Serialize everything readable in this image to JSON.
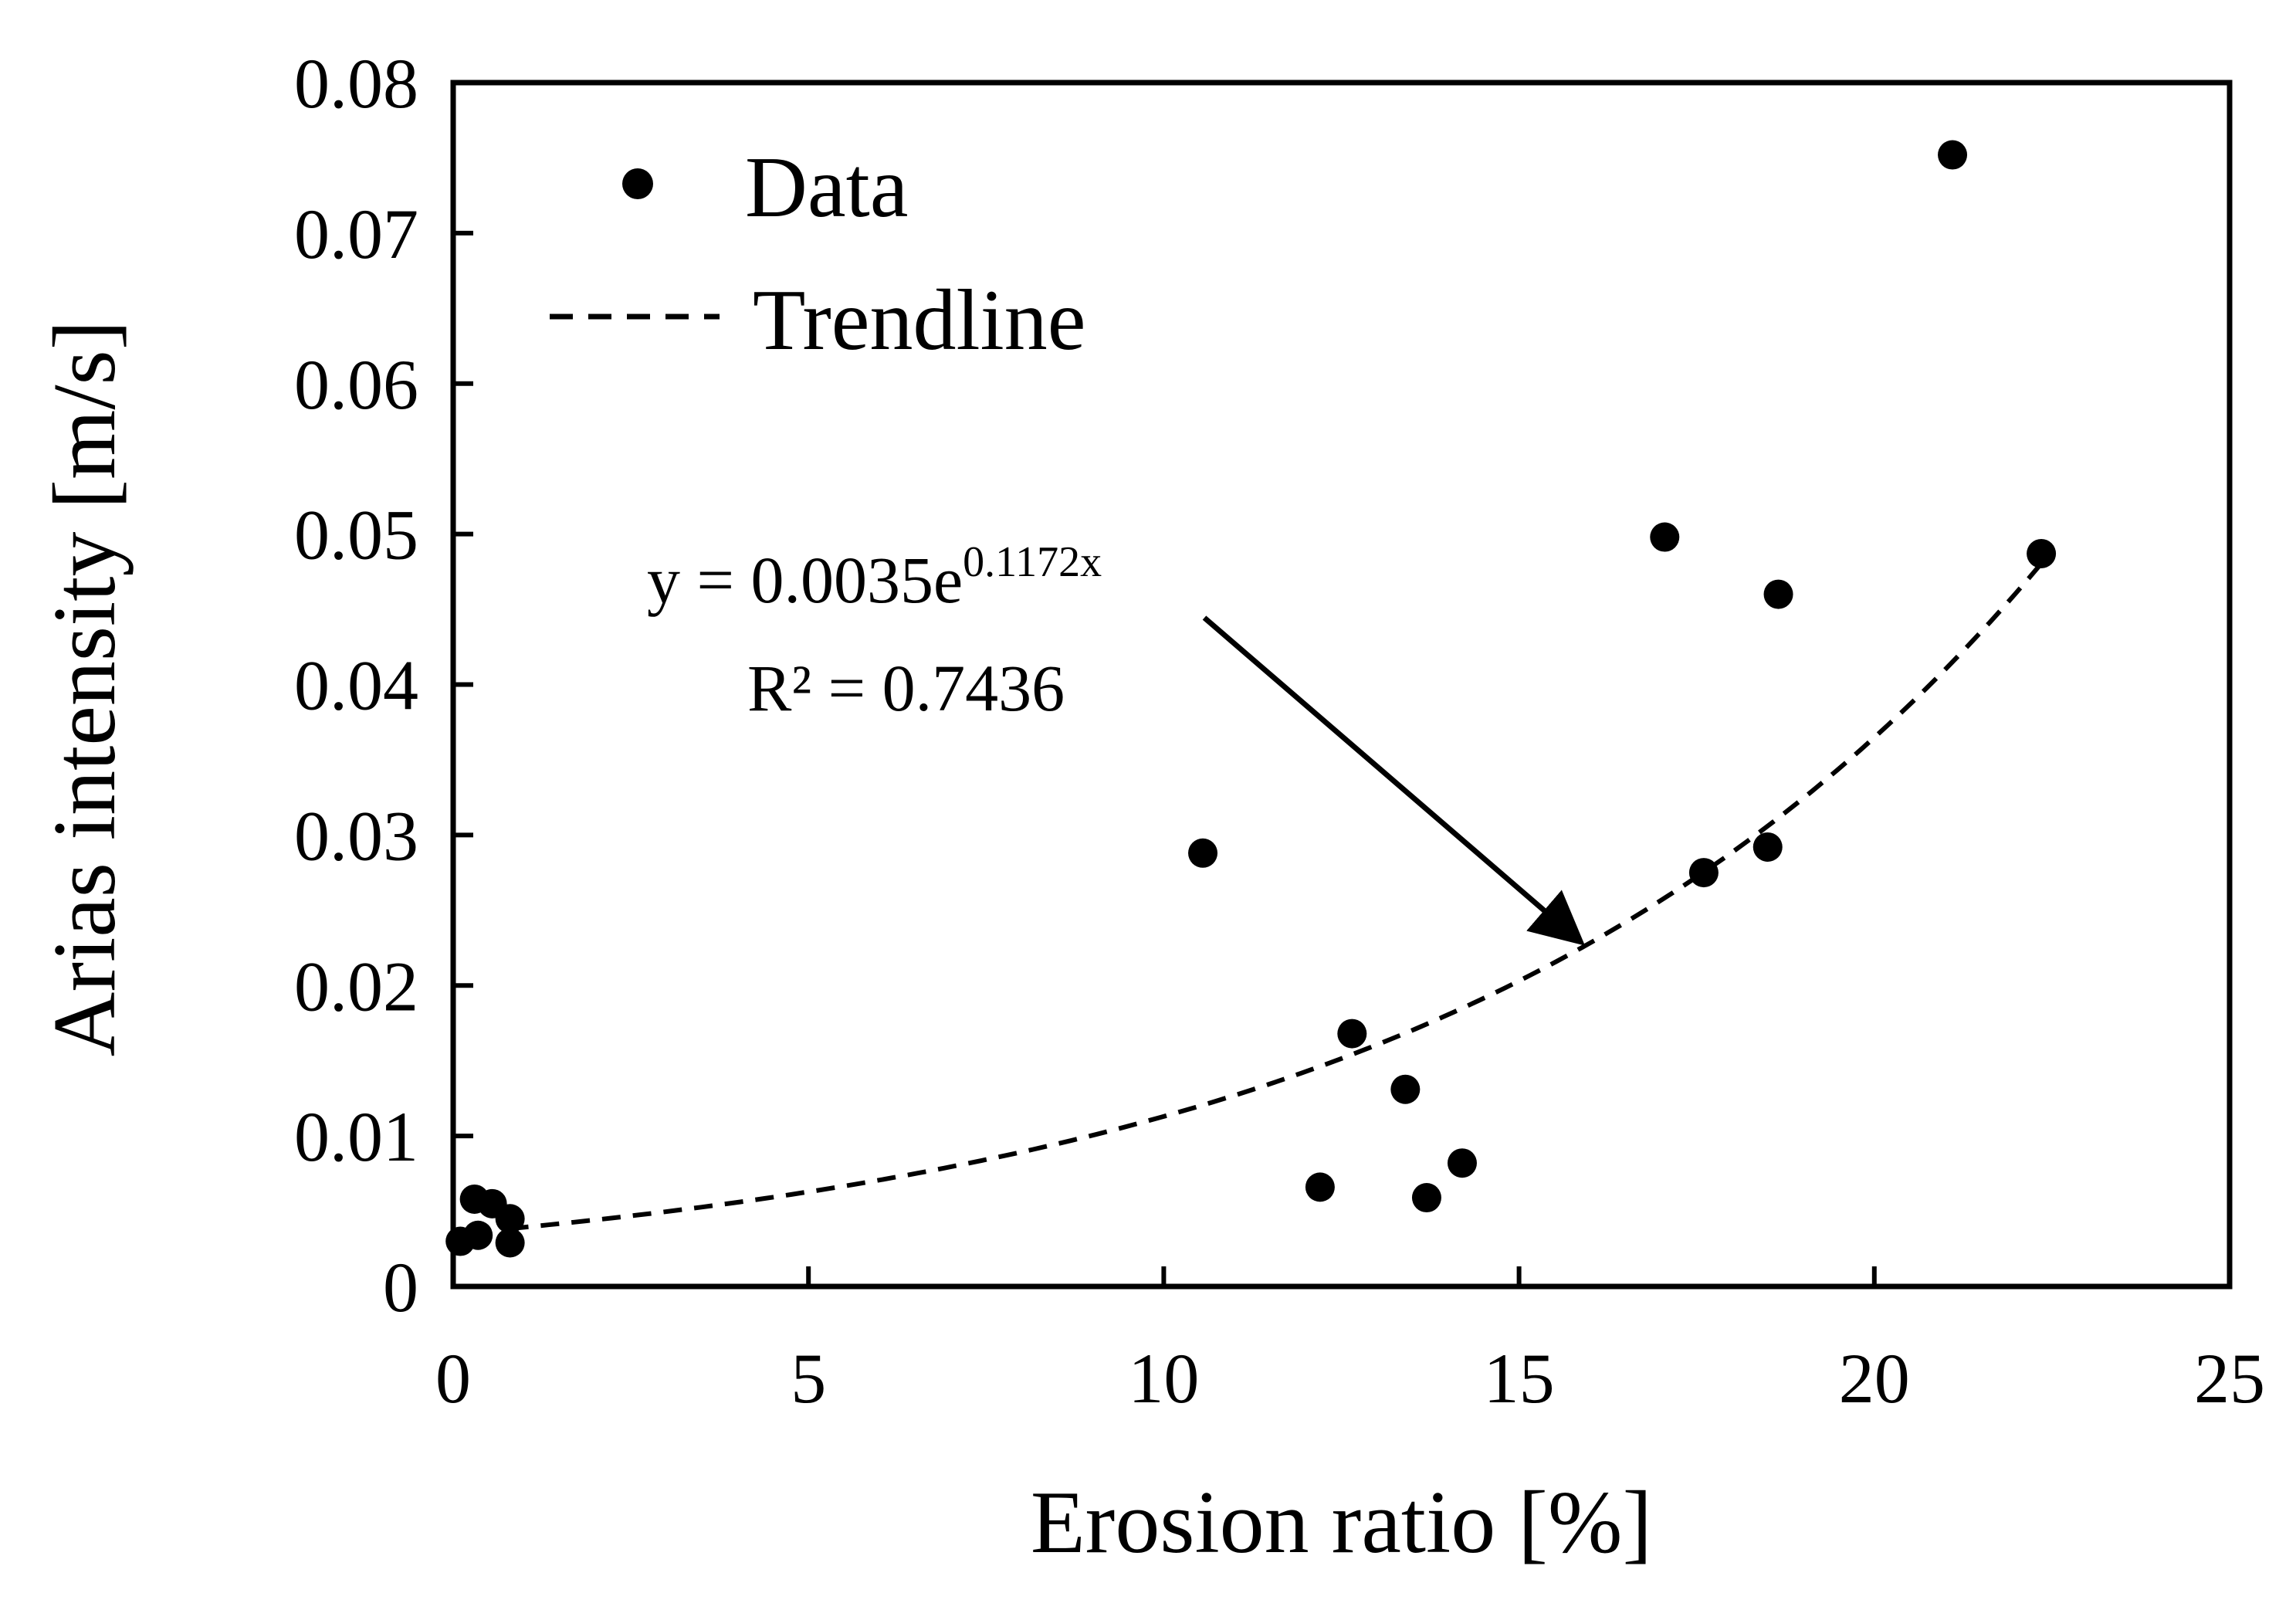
{
  "chart_data": {
    "type": "scatter",
    "title": "",
    "xlabel": "Erosion ratio [%]",
    "ylabel": "Arias intensity [m/s]",
    "xlim": [
      0,
      25
    ],
    "ylim": [
      0,
      0.08
    ],
    "x_ticks": [
      "0",
      "5",
      "10",
      "15",
      "20",
      "25"
    ],
    "y_ticks": [
      "0",
      "0.01",
      "0.02",
      "0.03",
      "0.04",
      "0.05",
      "0.06",
      "0.07",
      "0.08"
    ],
    "x_tick_values": [
      0,
      5,
      10,
      15,
      20,
      25
    ],
    "y_tick_values": [
      0,
      0.01,
      0.02,
      0.03,
      0.04,
      0.05,
      0.06,
      0.07,
      0.08
    ],
    "grid": false,
    "legend": {
      "position": "top-left",
      "entries": [
        "Data",
        "Trendline"
      ]
    },
    "series": [
      {
        "name": "Data",
        "kind": "points",
        "points": [
          {
            "x": 0.1,
            "y": 0.003
          },
          {
            "x": 0.3,
            "y": 0.0058
          },
          {
            "x": 0.35,
            "y": 0.0034
          },
          {
            "x": 0.55,
            "y": 0.0055
          },
          {
            "x": 0.8,
            "y": 0.0045
          },
          {
            "x": 0.8,
            "y": 0.0029
          },
          {
            "x": 10.55,
            "y": 0.0288
          },
          {
            "x": 12.2,
            "y": 0.0066
          },
          {
            "x": 12.65,
            "y": 0.0168
          },
          {
            "x": 13.4,
            "y": 0.0131
          },
          {
            "x": 13.7,
            "y": 0.0059
          },
          {
            "x": 14.2,
            "y": 0.0082
          },
          {
            "x": 17.05,
            "y": 0.0498
          },
          {
            "x": 17.6,
            "y": 0.0275
          },
          {
            "x": 18.5,
            "y": 0.0292
          },
          {
            "x": 18.65,
            "y": 0.046
          },
          {
            "x": 21.1,
            "y": 0.0752
          },
          {
            "x": 22.35,
            "y": 0.0487
          }
        ]
      },
      {
        "name": "Trendline",
        "kind": "exponential-fit",
        "coefficient": 0.0035,
        "exponent": 0.1172,
        "x_range": [
          0.8,
          22.35
        ]
      }
    ],
    "annotations": {
      "equation_prefix": "y = 0.0035e",
      "equation_exponent": "0.1172x",
      "r_squared": "R² = 0.7436",
      "arrow_target": {
        "x": 15.9,
        "y": 0.0225
      }
    }
  }
}
